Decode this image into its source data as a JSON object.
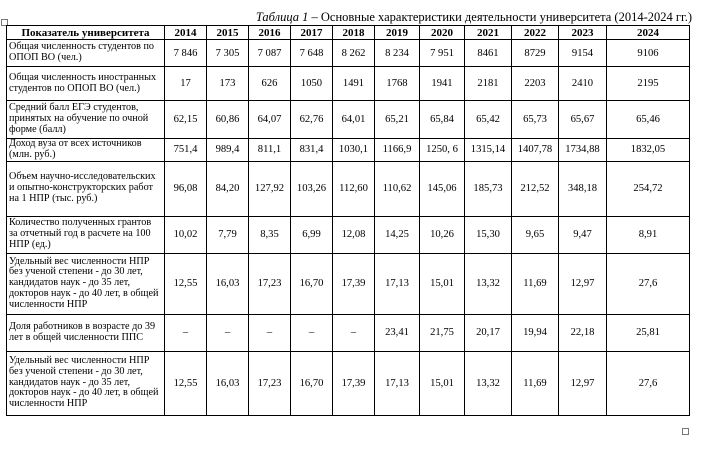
{
  "caption": {
    "number": "Таблица 1",
    "dash": " – ",
    "title": "Основные характеристики деятельности университета (2014-2024 гг.)"
  },
  "table": {
    "header": {
      "indicator": "Показатель университета",
      "years": [
        "2014",
        "2015",
        "2016",
        "2017",
        "2018",
        "2019",
        "2020",
        "2021",
        "2022",
        "2023",
        "2024"
      ]
    },
    "rows": [
      {
        "label": "Общая численность студентов по ОПОП ВО (чел.)",
        "values": [
          "7 846",
          "7 305",
          "7 087",
          "7 648",
          "8 262",
          "8 234",
          "7 951",
          "8461",
          "8729",
          "9154",
          "9106"
        ]
      },
      {
        "label": "Общая численность иностранных студентов по ОПОП ВО (чел.)",
        "values": [
          "17",
          "173",
          "626",
          "1050",
          "1491",
          "1768",
          "1941",
          "2181",
          "2203",
          "2410",
          "2195"
        ]
      },
      {
        "label": "Средний балл ЕГЭ студентов, принятых на обучение по очной форме (балл)",
        "values": [
          "62,15",
          "60,86",
          "64,07",
          "62,76",
          "64,01",
          "65,21",
          "65,84",
          "65,42",
          "65,73",
          "65,67",
          "65,46"
        ]
      },
      {
        "label": "Доход вуза от всех источников (млн. руб.)",
        "values": [
          "751,4",
          "989,4",
          "811,1",
          "831,4",
          "1030,1",
          "1166,9",
          "1250, 6",
          "1315,14",
          "1407,78",
          "1734,88",
          "1832,05"
        ]
      },
      {
        "label": "Объем научно-исследовательских и опытно-конструкторских работ на 1 НПР (тыс. руб.)",
        "values": [
          "96,08",
          "84,20",
          "127,92",
          "103,26",
          "112,60",
          "110,62",
          "145,06",
          "185,73",
          "212,52",
          "348,18",
          "254,72"
        ]
      },
      {
        "label": "Количество полученных грантов за отчетный год в расчете на 100 НПР (ед.)",
        "values": [
          "10,02",
          "7,79",
          "8,35",
          "6,99",
          "12,08",
          "14,25",
          "10,26",
          "15,30",
          "9,65",
          "9,47",
          "8,91"
        ]
      },
      {
        "label": "Удельный вес численности НПР без ученой степени - до 30 лет, кандидатов наук - до 35 лет, докторов наук - до 40 лет, в общей численности НПР",
        "values": [
          "12,55",
          "16,03",
          "17,23",
          "16,70",
          "17,39",
          "17,13",
          "15,01",
          "13,32",
          "11,69",
          "12,97",
          "27,6"
        ]
      },
      {
        "label": "Доля работников в возрасте до 39 лет в общей численности ППС",
        "values": [
          "–",
          "–",
          "–",
          "–",
          "–",
          "23,41",
          "21,75",
          "20,17",
          "19,94",
          "22,18",
          "25,81"
        ]
      },
      {
        "label": "Удельный вес численности НПР без ученой степени - до 30 лет, кандидатов наук - до 35 лет, докторов наук - до 40 лет, в общей численности НПР",
        "values": [
          "12,55",
          "16,03",
          "17,23",
          "16,70",
          "17,39",
          "17,13",
          "15,01",
          "13,32",
          "11,69",
          "12,97",
          "27,6"
        ]
      }
    ]
  }
}
